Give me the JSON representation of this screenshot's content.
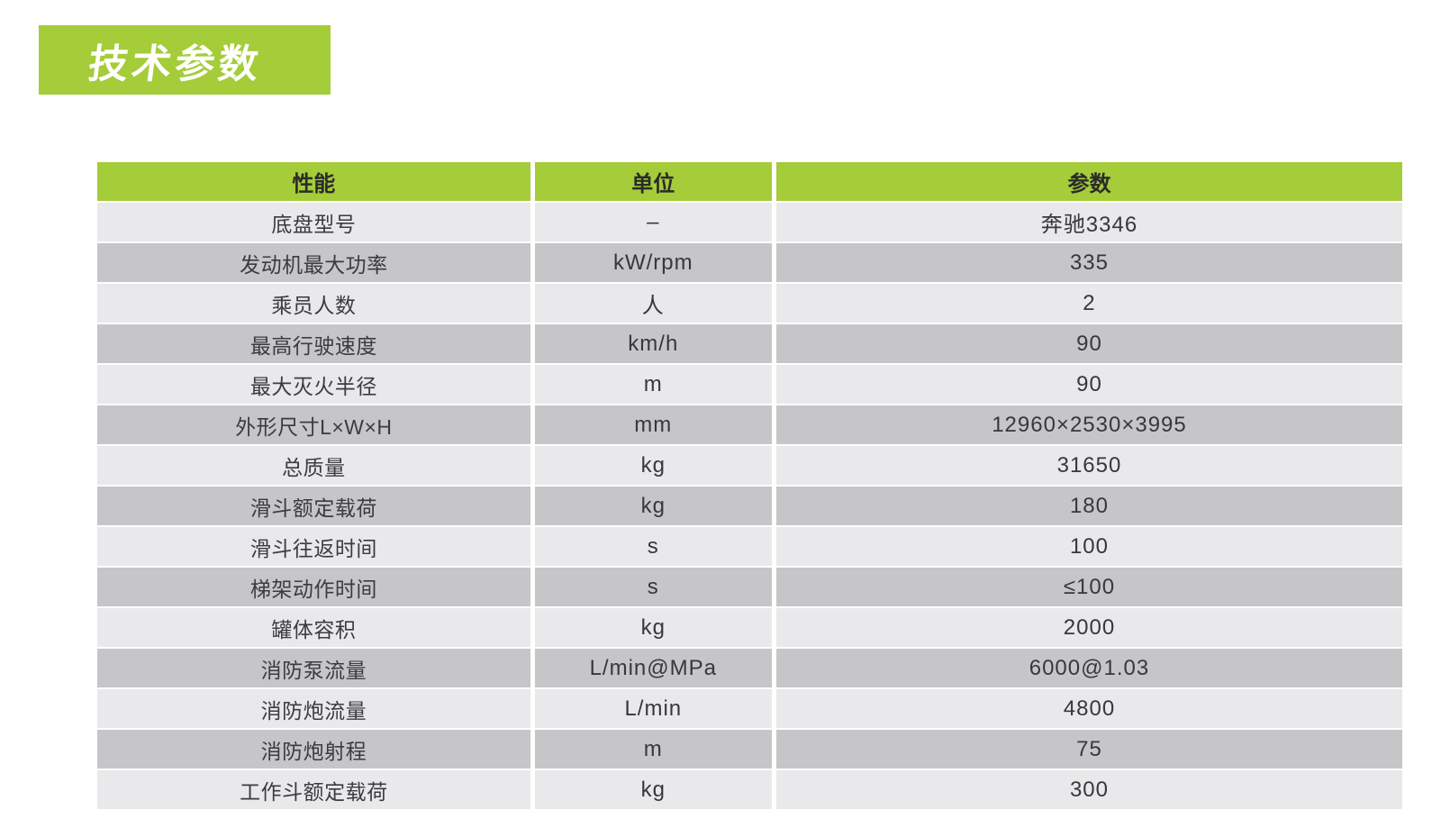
{
  "title_badge": {
    "label": "技术参数",
    "background": "#a5cc39",
    "text_color": "#ffffff"
  },
  "table": {
    "header": {
      "background": "#a5cc39",
      "text_color": "#2b2b2b",
      "columns": [
        "性能",
        "单位",
        "参数"
      ]
    },
    "row_colors": {
      "light": "#e9e9eb",
      "dark": "#c6c6c8"
    },
    "rows": [
      [
        "底盘型号",
        "–",
        "奔驰3346"
      ],
      [
        "发动机最大功率",
        "kW/rpm",
        "335"
      ],
      [
        "乘员人数",
        "人",
        "2"
      ],
      [
        "最高行驶速度",
        "km/h",
        "90"
      ],
      [
        "最大灭火半径",
        "m",
        "90"
      ],
      [
        "外形尺寸L×W×H",
        "mm",
        "12960×2530×3995"
      ],
      [
        "总质量",
        "kg",
        "31650"
      ],
      [
        "滑斗额定载荷",
        "kg",
        "180"
      ],
      [
        "滑斗往返时间",
        "s",
        "100"
      ],
      [
        "梯架动作时间",
        "s",
        "≤100"
      ],
      [
        "罐体容积",
        "kg",
        "2000"
      ],
      [
        "消防泵流量",
        "L/min@MPa",
        "6000@1.03"
      ],
      [
        "消防炮流量",
        "L/min",
        "4800"
      ],
      [
        "消防炮射程",
        "m",
        "75"
      ],
      [
        "工作斗额定载荷",
        "kg",
        "300"
      ]
    ]
  }
}
